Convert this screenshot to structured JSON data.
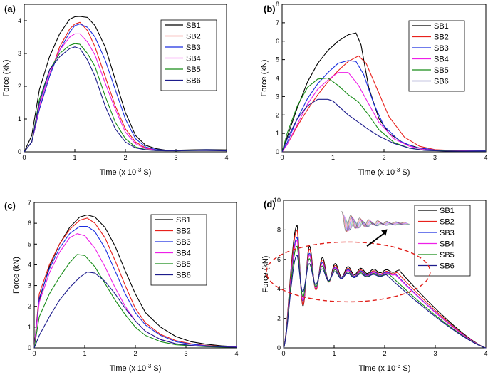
{
  "figure": {
    "series_names": [
      "SB1",
      "SB2",
      "SB3",
      "SB4",
      "SB5",
      "SB6"
    ],
    "series_colors": [
      "#000000",
      "#e8211c",
      "#1b2fe0",
      "#ee1fe8",
      "#178c17",
      "#1d1c8c"
    ],
    "annotation_color": "#e0201b"
  },
  "chart_data": [
    {
      "type": "line",
      "panel_label": "(a)",
      "xlabel": "Time (x 10",
      "xlabel_exp": "-3",
      "xlabel_unit": " S)",
      "ylabel": "Force (kN)",
      "xlim": [
        0,
        4
      ],
      "ylim": [
        0,
        4.5
      ],
      "xticks": [
        0,
        1,
        2,
        3,
        4
      ],
      "yticks": [
        0,
        1,
        2,
        3,
        4
      ],
      "series": [
        {
          "name": "SB1",
          "x": [
            0,
            0.15,
            0.3,
            0.5,
            0.7,
            0.9,
            1.0,
            1.1,
            1.25,
            1.4,
            1.6,
            1.8,
            2.0,
            2.2,
            2.4,
            2.6,
            2.8,
            3.0,
            3.3,
            3.6,
            4.0
          ],
          "y": [
            0,
            0.5,
            1.9,
            2.9,
            3.6,
            4.05,
            4.12,
            4.13,
            4.1,
            3.85,
            3.2,
            2.2,
            1.2,
            0.5,
            0.2,
            0.1,
            0.05,
            0.05,
            0.06,
            0.07,
            0.06
          ]
        },
        {
          "name": "SB2",
          "x": [
            0,
            0.15,
            0.3,
            0.5,
            0.7,
            0.9,
            1.0,
            1.1,
            1.25,
            1.4,
            1.6,
            1.8,
            2.0,
            2.2,
            2.4,
            2.6,
            2.8,
            3.0,
            3.3,
            3.6,
            4.0
          ],
          "y": [
            0,
            0.3,
            1.3,
            2.3,
            3.2,
            3.75,
            3.9,
            3.95,
            3.7,
            3.2,
            2.3,
            1.4,
            0.7,
            0.3,
            0.12,
            0.06,
            0.05,
            0.04,
            0.05,
            0.05,
            0.04
          ]
        },
        {
          "name": "SB3",
          "x": [
            0,
            0.15,
            0.3,
            0.5,
            0.7,
            0.9,
            1.0,
            1.1,
            1.25,
            1.4,
            1.6,
            1.8,
            2.0,
            2.2,
            2.4,
            2.6,
            2.8,
            3.0,
            3.3,
            3.6,
            4.0
          ],
          "y": [
            0,
            0.3,
            1.3,
            2.3,
            3.1,
            3.65,
            3.85,
            3.9,
            3.8,
            3.5,
            2.8,
            1.9,
            1.0,
            0.4,
            0.15,
            0.07,
            0.05,
            0.04,
            0.05,
            0.06,
            0.05
          ]
        },
        {
          "name": "SB4",
          "x": [
            0,
            0.15,
            0.3,
            0.5,
            0.7,
            0.9,
            1.0,
            1.1,
            1.25,
            1.4,
            1.6,
            1.8,
            2.0,
            2.2,
            2.4,
            2.6,
            2.8,
            3.0,
            3.3,
            3.6,
            4.0
          ],
          "y": [
            0,
            0.3,
            1.4,
            2.4,
            3.1,
            3.5,
            3.6,
            3.6,
            3.35,
            2.95,
            2.1,
            1.3,
            0.6,
            0.25,
            0.1,
            0.05,
            0.04,
            0.04,
            0.05,
            0.05,
            0.04
          ]
        },
        {
          "name": "SB5",
          "x": [
            0,
            0.15,
            0.3,
            0.5,
            0.7,
            0.9,
            1.0,
            1.1,
            1.25,
            1.4,
            1.6,
            1.8,
            2.0,
            2.2,
            2.4,
            2.6,
            2.8,
            3.0,
            3.3,
            3.6,
            4.0
          ],
          "y": [
            0,
            0.3,
            1.6,
            2.5,
            3.0,
            3.25,
            3.3,
            3.28,
            3.0,
            2.6,
            1.7,
            0.9,
            0.4,
            0.15,
            0.07,
            0.04,
            0.04,
            0.03,
            0.04,
            0.05,
            0.04
          ]
        },
        {
          "name": "SB6",
          "x": [
            0,
            0.15,
            0.3,
            0.5,
            0.7,
            0.9,
            1.0,
            1.1,
            1.25,
            1.4,
            1.6,
            1.8,
            2.0,
            2.2,
            2.4,
            2.6,
            2.8,
            3.0,
            3.3,
            3.6,
            4.0
          ],
          "y": [
            0,
            0.3,
            1.5,
            2.5,
            2.9,
            3.15,
            3.2,
            3.15,
            2.8,
            2.3,
            1.4,
            0.7,
            0.3,
            0.12,
            0.06,
            0.04,
            0.03,
            0.03,
            0.04,
            0.04,
            0.03
          ]
        }
      ]
    },
    {
      "type": "line",
      "panel_label": "(b)",
      "xlabel": "Time (x 10",
      "xlabel_exp": "-3",
      "xlabel_unit": " S)",
      "ylabel": "Force (kN)",
      "xlim": [
        0,
        4
      ],
      "ylim": [
        0,
        8
      ],
      "xticks": [
        0,
        1,
        2,
        3,
        4
      ],
      "yticks": [
        0,
        1,
        2,
        3,
        4,
        5,
        6,
        7,
        8
      ],
      "series": [
        {
          "name": "SB1",
          "x": [
            0,
            0.1,
            0.3,
            0.5,
            0.7,
            0.9,
            1.1,
            1.3,
            1.45,
            1.55,
            1.7,
            1.9,
            2.1,
            2.4,
            2.7,
            3.0,
            3.3,
            3.7,
            4.0
          ],
          "y": [
            0,
            0.8,
            2.4,
            3.8,
            4.8,
            5.5,
            6.0,
            6.35,
            6.45,
            5.8,
            3.5,
            1.8,
            1.0,
            0.45,
            0.2,
            0.1,
            0.08,
            0.06,
            0.05
          ]
        },
        {
          "name": "SB2",
          "x": [
            0,
            0.1,
            0.3,
            0.5,
            0.7,
            0.9,
            1.1,
            1.3,
            1.5,
            1.65,
            1.85,
            2.1,
            2.4,
            2.7,
            3.0,
            3.3,
            3.7,
            4.0
          ],
          "y": [
            0,
            0.4,
            1.4,
            2.3,
            3.1,
            3.8,
            4.4,
            4.9,
            5.2,
            4.8,
            3.5,
            1.9,
            0.8,
            0.3,
            0.12,
            0.08,
            0.06,
            0.05
          ]
        },
        {
          "name": "SB3",
          "x": [
            0,
            0.1,
            0.3,
            0.5,
            0.7,
            0.9,
            1.1,
            1.3,
            1.45,
            1.6,
            1.8,
            2.0,
            2.3,
            2.6,
            3.0,
            3.4,
            4.0
          ],
          "y": [
            0,
            0.5,
            1.8,
            2.9,
            3.7,
            4.3,
            4.8,
            4.95,
            4.9,
            4.2,
            2.6,
            1.4,
            0.6,
            0.25,
            0.1,
            0.07,
            0.05
          ]
        },
        {
          "name": "SB4",
          "x": [
            0,
            0.1,
            0.3,
            0.5,
            0.7,
            0.9,
            1.1,
            1.3,
            1.5,
            1.7,
            1.9,
            2.2,
            2.5,
            2.8,
            3.2,
            3.6,
            4.0
          ],
          "y": [
            0,
            0.4,
            1.5,
            2.6,
            3.4,
            3.9,
            4.3,
            4.3,
            3.6,
            2.6,
            1.6,
            0.7,
            0.3,
            0.12,
            0.07,
            0.05,
            0.04
          ]
        },
        {
          "name": "SB5",
          "x": [
            0,
            0.1,
            0.3,
            0.5,
            0.7,
            0.9,
            1.1,
            1.3,
            1.5,
            1.7,
            1.9,
            2.2,
            2.5,
            2.8,
            3.2,
            3.6,
            4.0
          ],
          "y": [
            0,
            1.0,
            2.5,
            3.5,
            3.95,
            4.0,
            3.6,
            3.1,
            2.7,
            2.0,
            1.2,
            0.5,
            0.2,
            0.08,
            0.05,
            0.04,
            0.03
          ]
        },
        {
          "name": "SB6",
          "x": [
            0,
            0.1,
            0.3,
            0.5,
            0.7,
            0.9,
            1.0,
            1.1,
            1.3,
            1.5,
            1.7,
            1.9,
            2.2,
            2.5,
            2.8,
            3.2,
            3.6,
            4.0
          ],
          "y": [
            0,
            0.7,
            1.8,
            2.5,
            2.85,
            2.85,
            2.75,
            2.5,
            2.0,
            1.6,
            1.2,
            0.85,
            0.45,
            0.2,
            0.08,
            0.04,
            0.03,
            0.03
          ]
        }
      ]
    },
    {
      "type": "line",
      "panel_label": "(c)",
      "xlabel": "Time (x 10",
      "xlabel_exp": "-3",
      "xlabel_unit": " S)",
      "ylabel": "Force (kN)",
      "xlim": [
        0,
        4
      ],
      "ylim": [
        0,
        7
      ],
      "xticks": [
        0,
        1,
        2,
        3,
        4
      ],
      "yticks": [
        0,
        1,
        2,
        3,
        4,
        5,
        6,
        7
      ],
      "series": [
        {
          "name": "SB1",
          "x": [
            0,
            0.1,
            0.3,
            0.5,
            0.7,
            0.9,
            1.05,
            1.2,
            1.4,
            1.6,
            1.8,
            2.0,
            2.2,
            2.5,
            2.8,
            3.1,
            3.4,
            3.7,
            4.0
          ],
          "y": [
            0,
            2.3,
            3.9,
            5.0,
            5.8,
            6.3,
            6.4,
            6.3,
            5.8,
            4.9,
            3.7,
            2.6,
            1.7,
            1.0,
            0.55,
            0.3,
            0.18,
            0.1,
            0.06
          ]
        },
        {
          "name": "SB2",
          "x": [
            0,
            0.1,
            0.3,
            0.5,
            0.7,
            0.9,
            1.05,
            1.2,
            1.4,
            1.6,
            1.8,
            2.0,
            2.2,
            2.5,
            2.8,
            3.1,
            3.4,
            3.7,
            4.0
          ],
          "y": [
            0,
            2.6,
            4.0,
            5.0,
            5.7,
            6.15,
            6.25,
            6.0,
            5.3,
            4.2,
            3.0,
            1.9,
            1.2,
            0.65,
            0.35,
            0.2,
            0.12,
            0.08,
            0.05
          ]
        },
        {
          "name": "SB3",
          "x": [
            0,
            0.1,
            0.3,
            0.5,
            0.7,
            0.9,
            1.05,
            1.2,
            1.4,
            1.6,
            1.8,
            2.0,
            2.2,
            2.5,
            2.8,
            3.1,
            3.4,
            3.7,
            4.0
          ],
          "y": [
            0,
            2.4,
            3.8,
            4.8,
            5.5,
            5.85,
            5.85,
            5.6,
            4.8,
            3.7,
            2.6,
            1.7,
            1.1,
            0.6,
            0.3,
            0.18,
            0.1,
            0.07,
            0.05
          ]
        },
        {
          "name": "SB4",
          "x": [
            0,
            0.1,
            0.3,
            0.5,
            0.7,
            0.85,
            1.0,
            1.2,
            1.4,
            1.6,
            1.8,
            2.0,
            2.2,
            2.5,
            2.8,
            3.1,
            3.4,
            3.7,
            4.0
          ],
          "y": [
            0,
            2.2,
            3.6,
            4.6,
            5.3,
            5.5,
            5.4,
            4.8,
            3.9,
            2.9,
            2.0,
            1.3,
            0.8,
            0.4,
            0.2,
            0.12,
            0.08,
            0.05,
            0.04
          ]
        },
        {
          "name": "SB5",
          "x": [
            0,
            0.1,
            0.3,
            0.5,
            0.7,
            0.85,
            1.0,
            1.2,
            1.4,
            1.6,
            1.8,
            2.0,
            2.2,
            2.5,
            2.8,
            3.1,
            3.4,
            3.7,
            4.0
          ],
          "y": [
            0,
            1.5,
            2.6,
            3.4,
            4.1,
            4.5,
            4.45,
            3.9,
            3.1,
            2.3,
            1.6,
            1.0,
            0.6,
            0.3,
            0.15,
            0.1,
            0.06,
            0.04,
            0.03
          ]
        },
        {
          "name": "SB6",
          "x": [
            0,
            0.1,
            0.3,
            0.5,
            0.7,
            0.9,
            1.05,
            1.2,
            1.4,
            1.6,
            1.8,
            2.0,
            2.2,
            2.5,
            2.8,
            3.1,
            3.4,
            3.7,
            4.0
          ],
          "y": [
            0,
            0.6,
            1.5,
            2.3,
            2.9,
            3.4,
            3.65,
            3.6,
            3.2,
            2.6,
            1.9,
            1.3,
            0.8,
            0.4,
            0.2,
            0.12,
            0.07,
            0.05,
            0.03
          ]
        }
      ]
    },
    {
      "type": "line",
      "panel_label": "(d)",
      "xlabel": "Time (x 10",
      "xlabel_exp": "-3",
      "xlabel_unit": " S)",
      "ylabel": "Force (kN)",
      "xlim": [
        0,
        4
      ],
      "ylim": [
        0,
        10
      ],
      "xticks": [
        0,
        1,
        2,
        3,
        4
      ],
      "yticks": [
        0,
        2,
        4,
        6,
        8,
        10
      ],
      "series": [
        {
          "name": "SB1",
          "peak": 8.3,
          "trough_amp": 1.9,
          "tail_start": 2.3,
          "plateau": 5.2
        },
        {
          "name": "SB2",
          "peak": 8.0,
          "trough_amp": 1.8,
          "tail_start": 2.25,
          "plateau": 5.1
        },
        {
          "name": "SB3",
          "peak": 7.5,
          "trough_amp": 1.6,
          "tail_start": 2.2,
          "plateau": 5.05
        },
        {
          "name": "SB4",
          "peak": 7.3,
          "trough_amp": 1.6,
          "tail_start": 2.2,
          "plateau": 5.0
        },
        {
          "name": "SB5",
          "peak": 6.9,
          "trough_amp": 1.4,
          "tail_start": 2.1,
          "plateau": 4.95
        },
        {
          "name": "SB6",
          "peak": 6.3,
          "trough_amp": 1.2,
          "tail_start": 2.05,
          "plateau": 4.9
        }
      ],
      "annotations": [
        "dashed ellipse around oscillating region",
        "arrow to zoomed inset"
      ]
    }
  ]
}
